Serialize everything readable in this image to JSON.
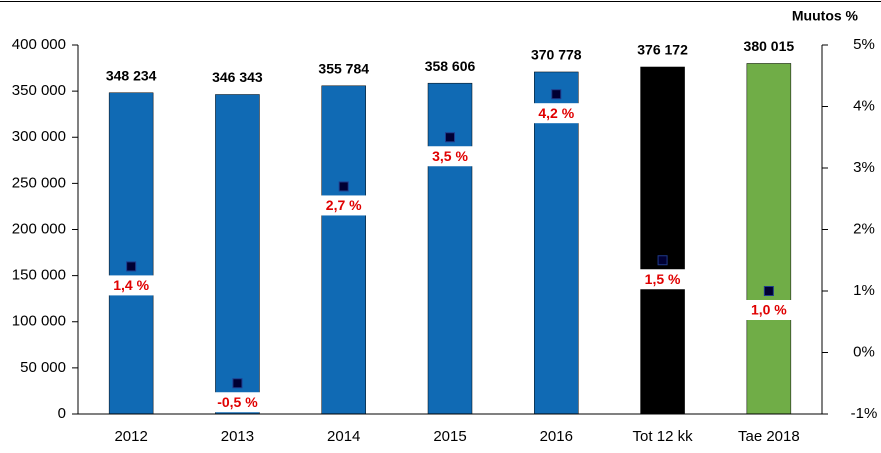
{
  "chart_data": {
    "type": "bar",
    "categories": [
      "2012",
      "2013",
      "2014",
      "2015",
      "2016",
      "Tot 12 kk",
      "Tae 2018"
    ],
    "y2_label": "Muutos %",
    "series": [
      {
        "type": "bar",
        "colors": [
          "#106ab4",
          "#106ab4",
          "#106ab4",
          "#106ab4",
          "#106ab4",
          "#000000",
          "#70ad47"
        ],
        "values": [
          348234,
          346343,
          355784,
          358606,
          370778,
          376172,
          380015
        ],
        "value_labels": [
          "348 234",
          "346 343",
          "355 784",
          "358 606",
          "370 778",
          "376 172",
          "380 015"
        ]
      },
      {
        "type": "scatter",
        "axis": "y2",
        "color": "#000033",
        "values": [
          1.4,
          -0.5,
          2.7,
          3.5,
          4.2,
          1.5,
          1.0
        ],
        "value_labels": [
          "1,4 %",
          "-0,5 %",
          "2,7 %",
          "3,5 %",
          "4,2 %",
          "1,5 %",
          "1,0 %"
        ]
      }
    ],
    "ylim": [
      0,
      400000
    ],
    "yticks": [
      {
        "value": 0,
        "label": "0"
      },
      {
        "value": 50000,
        "label": "50 000"
      },
      {
        "value": 100000,
        "label": "100 000"
      },
      {
        "value": 150000,
        "label": "150 000"
      },
      {
        "value": 200000,
        "label": "200 000"
      },
      {
        "value": 250000,
        "label": "250 000"
      },
      {
        "value": 300000,
        "label": "300 000"
      },
      {
        "value": 350000,
        "label": "350 000"
      },
      {
        "value": 400000,
        "label": "400 000"
      }
    ],
    "y2lim": [
      -1,
      5
    ],
    "y2ticks": [
      {
        "value": -1,
        "label": "-1%"
      },
      {
        "value": 0,
        "label": "0%"
      },
      {
        "value": 1,
        "label": "1%"
      },
      {
        "value": 2,
        "label": "2%"
      },
      {
        "value": 3,
        "label": "3%"
      },
      {
        "value": 4,
        "label": "4%"
      },
      {
        "value": 5,
        "label": "5%"
      }
    ]
  }
}
